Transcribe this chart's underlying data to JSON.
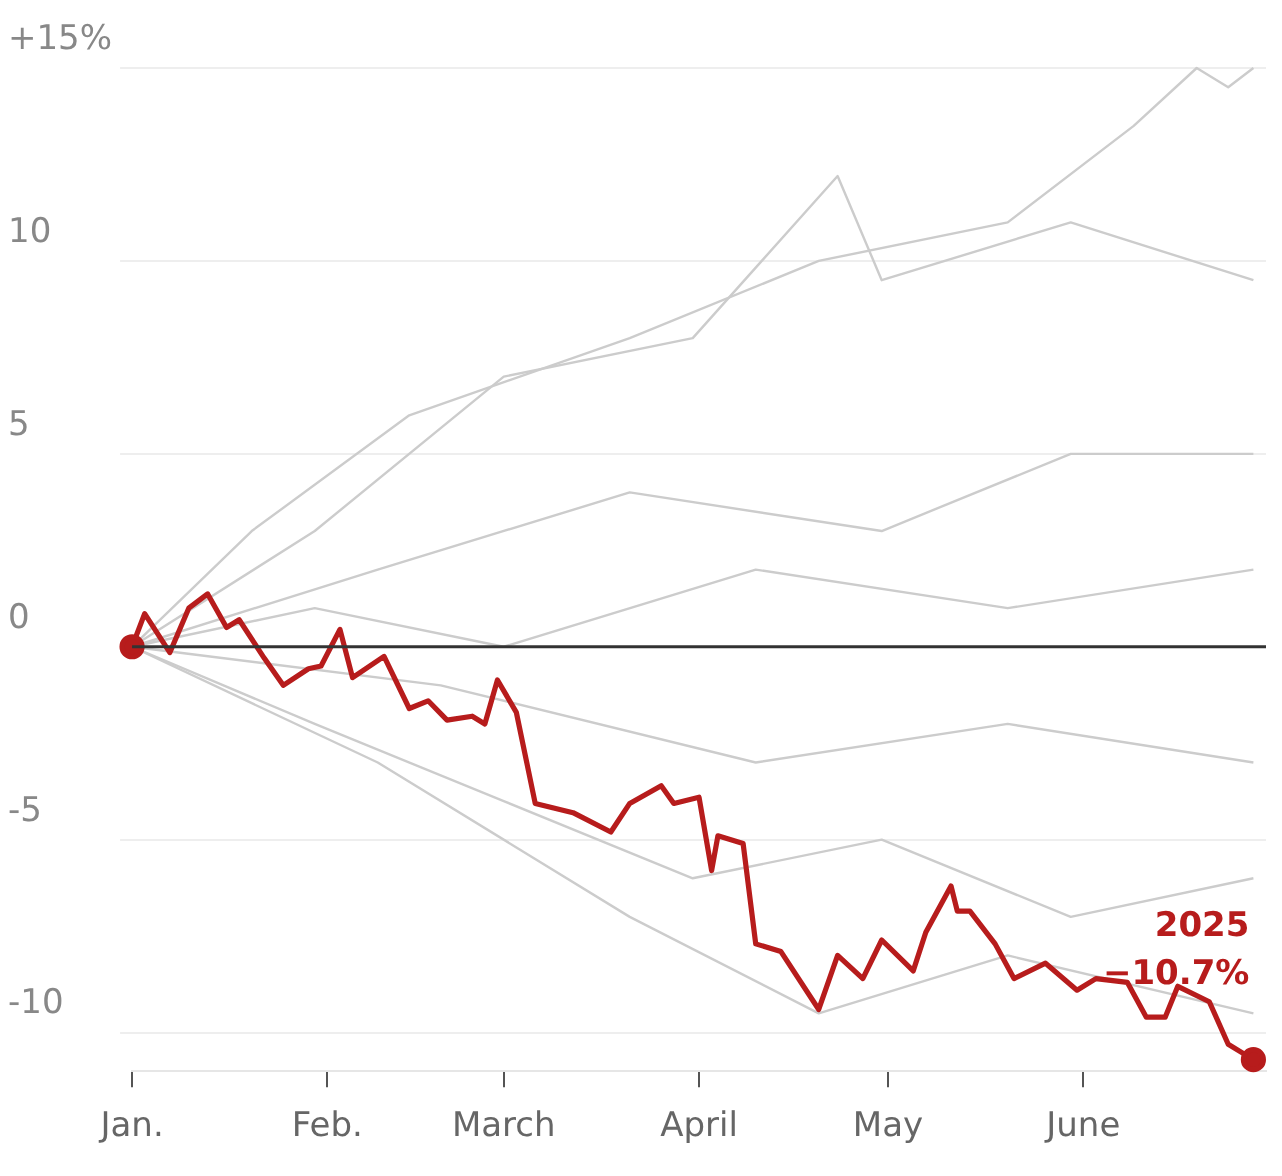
{
  "chart_data": {
    "type": "line",
    "xlim": [
      "--01-01",
      "--06-30"
    ],
    "ylim": [
      -11,
      15
    ],
    "xticks": [
      {
        "value": "--01-01",
        "label": "Jan."
      },
      {
        "value": "--02-01",
        "label": "Feb."
      },
      {
        "value": "--03-01",
        "label": "March"
      },
      {
        "value": "--04-01",
        "label": "April"
      },
      {
        "value": "--05-01",
        "label": "May"
      },
      {
        "value": "--06-01",
        "label": "June"
      }
    ],
    "yticks": [
      {
        "value": 15,
        "label": "+15%"
      },
      10,
      5,
      0,
      -5,
      -10
    ],
    "grid": "y",
    "legend": false,
    "ref_lines": [
      {
        "axis": "y",
        "value": 0,
        "color": "#333333"
      }
    ],
    "annotations": [
      {
        "text": "−10.7%",
        "x": "--06-28",
        "y": -10.7
      }
    ],
    "series": [
      {
        "color": "#cccccc",
        "x": [
          "--01-01",
          "--01-20",
          "--02-14",
          "--03-21",
          "--04-20",
          "--05-20",
          "--06-09",
          "--06-19",
          "--06-24",
          "--06-28"
        ],
        "values": [
          0,
          3,
          6,
          8,
          10,
          11,
          13.5,
          15,
          14.5,
          15
        ]
      },
      {
        "color": "#cccccc",
        "x": [
          "--01-01",
          "--01-30",
          "--03-01",
          "--03-31",
          "--04-23",
          "--04-30",
          "--05-30",
          "--06-28"
        ],
        "values": [
          0,
          3,
          7,
          8,
          12.2,
          9.5,
          11,
          9.5
        ]
      },
      {
        "color": "#cccccc",
        "x": [
          "--01-01",
          "--02-09",
          "--03-21",
          "--04-30",
          "--05-30",
          "--06-28"
        ],
        "values": [
          0,
          2,
          4,
          3,
          5,
          5
        ]
      },
      {
        "color": "#cccccc",
        "x": [
          "--01-01",
          "--01-30",
          "--03-01",
          "--04-10",
          "--05-20",
          "--06-28"
        ],
        "values": [
          0,
          1,
          0,
          2,
          1,
          2
        ]
      },
      {
        "color": "#cccccc",
        "x": [
          "--01-01",
          "--02-19",
          "--04-10",
          "--05-20",
          "--06-28"
        ],
        "values": [
          0,
          -1,
          -3,
          -2,
          -3
        ]
      },
      {
        "color": "#cccccc",
        "x": [
          "--01-01",
          "--01-30",
          "--03-01",
          "--03-31",
          "--04-30",
          "--05-30",
          "--06-28"
        ],
        "values": [
          0,
          -2,
          -4,
          -6,
          -5,
          -7,
          -6
        ]
      },
      {
        "color": "#cccccc",
        "x": [
          "--01-01",
          "--02-09",
          "--03-21",
          "--04-20",
          "--05-20",
          "--06-28"
        ],
        "values": [
          0,
          -3,
          -7,
          -9.5,
          -8,
          -9.5
        ]
      },
      {
        "name": "2025",
        "color": "#b71c1c",
        "x": [
          "--01-01",
          "--01-03",
          "--01-07",
          "--01-10",
          "--01-13",
          "--01-16",
          "--01-18",
          "--01-22",
          "--01-25",
          "--01-29",
          "--01-31",
          "--02-03",
          "--02-05",
          "--02-10",
          "--02-14",
          "--02-17",
          "--02-20",
          "--02-24",
          "--02-26",
          "--02-28",
          "--03-03",
          "--03-06",
          "--03-12",
          "--03-18",
          "--03-21",
          "--03-26",
          "--03-28",
          "--04-01",
          "--04-03",
          "--04-04",
          "--04-08",
          "--04-10",
          "--04-14",
          "--04-20",
          "--04-23",
          "--04-27",
          "--04-30",
          "--05-05",
          "--05-07",
          "--05-11",
          "--05-12",
          "--05-14",
          "--05-18",
          "--05-21",
          "--05-26",
          "--05-31",
          "--06-03",
          "--06-08",
          "--06-11",
          "--06-14",
          "--06-16",
          "--06-21",
          "--06-24",
          "--06-28"
        ],
        "values": [
          0,
          0.86,
          -0.15,
          1.0,
          1.37,
          0.5,
          0.7,
          -0.3,
          -1.0,
          -0.57,
          -0.5,
          0.45,
          -0.8,
          -0.25,
          -1.6,
          -1.4,
          -1.9,
          -1.8,
          -2.0,
          -0.86,
          -1.7,
          -4.06,
          -4.3,
          -4.8,
          -4.06,
          -3.6,
          -4.06,
          -3.9,
          -5.8,
          -4.9,
          -5.1,
          -7.7,
          -7.9,
          -9.4,
          -8.0,
          -8.6,
          -7.6,
          -8.4,
          -7.4,
          -6.2,
          -6.85,
          -6.85,
          -7.7,
          -8.6,
          -8.2,
          -8.9,
          -8.6,
          -8.7,
          -9.6,
          -9.6,
          -8.8,
          -9.2,
          -10.3,
          -10.7
        ]
      }
    ]
  }
}
